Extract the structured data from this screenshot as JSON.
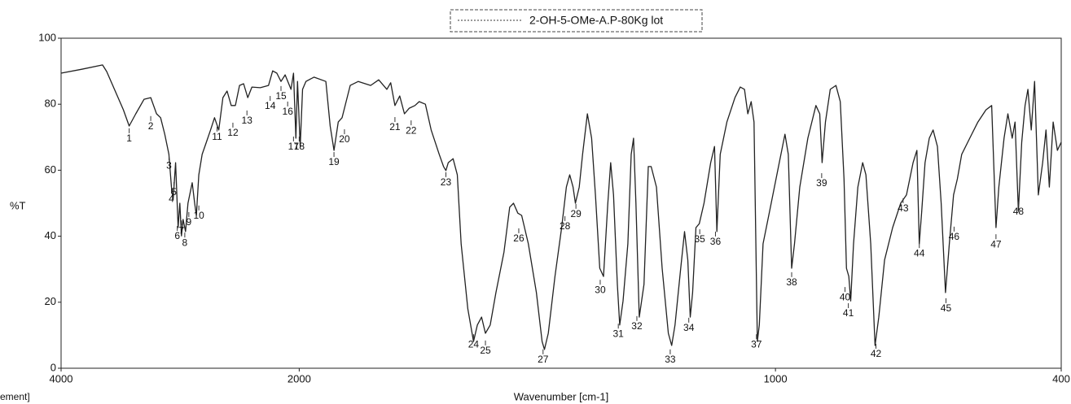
{
  "chart_data": {
    "type": "line",
    "x_label": "Wavenumber [cm-1]",
    "y_label": "%T",
    "corner_text": "ement]",
    "xlim": [
      4000,
      400
    ],
    "x_scale_break": 2000,
    "xticks": [
      4000,
      2000,
      1000,
      400
    ],
    "ylim": [
      0,
      100
    ],
    "yticks": [
      0,
      20,
      40,
      60,
      80,
      100
    ],
    "grid": false,
    "legend": "top",
    "series": [
      {
        "name": "2-OH-5-OMe-A.P-80Kg lot",
        "color": "#222222",
        "x": [
          4000,
          3826,
          3652,
          3617,
          3477,
          3428,
          3373,
          3303,
          3247,
          3198,
          3164,
          3129,
          3094,
          3073,
          3059,
          3038,
          3017,
          3003,
          2989,
          2975,
          2955,
          2934,
          2899,
          2878,
          2864,
          2843,
          2815,
          2780,
          2745,
          2711,
          2676,
          2641,
          2606,
          2571,
          2536,
          2501,
          2467,
          2432,
          2397,
          2327,
          2258,
          2223,
          2188,
          2153,
          2118,
          2069,
          2048,
          2028,
          2014,
          1998,
          1993,
          1986,
          1969,
          1944,
          1935,
          1927,
          1918,
          1910,
          1893,
          1876,
          1850,
          1833,
          1816,
          1808,
          1799,
          1789,
          1779,
          1769,
          1757,
          1748,
          1735,
          1723,
          1706,
          1697,
          1692,
          1687,
          1677,
          1668,
          1660,
          1646,
          1634,
          1626,
          1617,
          1609,
          1599,
          1587,
          1570,
          1558,
          1550,
          1541,
          1533,
          1519,
          1502,
          1490,
          1485,
          1477,
          1463,
          1449,
          1439,
          1432,
          1425,
          1420,
          1412,
          1405,
          1395,
          1386,
          1378,
          1369,
          1361,
          1352,
          1346,
          1340,
          1332,
          1327,
          1320,
          1310,
          1303,
          1298,
          1293,
          1286,
          1276,
          1267,
          1261,
          1250,
          1238,
          1225,
          1218,
          1211,
          1199,
          1191,
          1184,
          1179,
          1174,
          1167,
          1160,
          1150,
          1136,
          1128,
          1123,
          1116,
          1102,
          1085,
          1074,
          1065,
          1058,
          1051,
          1045,
          1038,
          1034,
          1026,
          1009,
          992,
          980,
          973,
          966,
          960,
          949,
          932,
          915,
          907,
          902,
          895,
          885,
          873,
          864,
          856,
          851,
          846,
          842,
          836,
          827,
          817,
          810,
          800,
          791,
          783,
          771,
          754,
          737,
          725,
          711,
          703,
          698,
          693,
          686,
          677,
          669,
          660,
          652,
          643,
          635,
          626,
          618,
          609,
          592,
          575,
          558,
          546,
          537,
          531,
          520,
          512,
          503,
          497,
          490,
          483,
          476,
          470,
          463,
          456,
          448,
          439,
          432,
          425,
          417,
          408,
          400
        ],
        "values": [
          89.4,
          90.6,
          91.9,
          89.9,
          78.3,
          73.4,
          77.1,
          81.5,
          82.0,
          77.1,
          75.9,
          70.9,
          64.8,
          54.9,
          51.2,
          62.3,
          42.6,
          50.0,
          40.1,
          45.1,
          41.4,
          50.0,
          56.2,
          50.0,
          46.3,
          58.6,
          64.8,
          68.5,
          72.2,
          75.9,
          72.2,
          82.0,
          84.0,
          79.6,
          79.6,
          85.7,
          86.2,
          82.0,
          85.2,
          85.0,
          85.7,
          90.1,
          89.4,
          86.9,
          88.9,
          84.5,
          89.4,
          69.7,
          86.9,
          67.2,
          84.5,
          86.9,
          88.2,
          86.9,
          73.4,
          66.0,
          74.6,
          75.9,
          85.7,
          86.9,
          85.7,
          87.4,
          84.5,
          86.5,
          79.6,
          82.5,
          77.1,
          78.8,
          79.6,
          80.8,
          80.0,
          72.2,
          64.8,
          61.1,
          59.9,
          62.3,
          63.5,
          58.6,
          37.7,
          18.0,
          8.1,
          13.1,
          15.5,
          10.6,
          13.1,
          22.9,
          35.2,
          48.8,
          50.0,
          47.0,
          46.3,
          37.7,
          22.9,
          8.1,
          5.7,
          10.6,
          27.8,
          42.6,
          54.9,
          58.6,
          54.9,
          50.0,
          54.9,
          64.8,
          77.1,
          69.7,
          52.5,
          30.3,
          27.8,
          50.0,
          62.3,
          52.5,
          25.4,
          13.1,
          20.4,
          37.7,
          64.8,
          69.7,
          50.0,
          15.5,
          25.4,
          61.1,
          61.1,
          54.9,
          30.3,
          10.6,
          6.9,
          13.1,
          30.3,
          41.4,
          32.8,
          15.5,
          22.9,
          42.6,
          43.8,
          50.0,
          62.3,
          67.2,
          41.4,
          64.8,
          74.6,
          82.0,
          85.2,
          84.5,
          77.1,
          80.8,
          74.6,
          8.1,
          13.1,
          37.7,
          50.0,
          62.3,
          70.9,
          64.8,
          30.3,
          37.7,
          54.9,
          69.7,
          79.6,
          77.1,
          62.3,
          74.6,
          84.5,
          85.7,
          80.8,
          57.4,
          30.3,
          27.8,
          20.4,
          37.7,
          54.9,
          62.3,
          58.6,
          37.7,
          6.9,
          15.5,
          32.8,
          42.6,
          50.0,
          52.5,
          62.3,
          66.0,
          37.7,
          47.5,
          62.3,
          69.7,
          72.2,
          67.2,
          50.0,
          22.9,
          37.7,
          52.5,
          57.4,
          64.8,
          69.7,
          74.6,
          78.3,
          79.6,
          42.6,
          54.9,
          69.7,
          77.1,
          69.7,
          74.6,
          47.5,
          68.5,
          79.6,
          84.5,
          72.2,
          86.9,
          52.5,
          62.3,
          72.2,
          54.9,
          74.6,
          66.0,
          68.5
        ]
      }
    ],
    "peak_labels": [
      {
        "text": "1",
        "x": 3428,
        "y": 72.7
      },
      {
        "text": "2",
        "x": 3247,
        "y": 76.4
      },
      {
        "text": "3",
        "x": 3094,
        "y": 64.5
      },
      {
        "text": "4",
        "x": 3073,
        "y": 54.4
      },
      {
        "text": "5",
        "x": 3052,
        "y": 56.4
      },
      {
        "text": "6",
        "x": 3024,
        "y": 43.1
      },
      {
        "text": "7",
        "x": 2989,
        "y": 44.8
      },
      {
        "text": "8",
        "x": 2961,
        "y": 41.1
      },
      {
        "text": "9",
        "x": 2927,
        "y": 47.3
      },
      {
        "text": "10",
        "x": 2843,
        "y": 49.3
      },
      {
        "text": "11",
        "x": 2690,
        "y": 73.2
      },
      {
        "text": "12",
        "x": 2557,
        "y": 74.4
      },
      {
        "text": "13",
        "x": 2439,
        "y": 78.1
      },
      {
        "text": "14",
        "x": 2244,
        "y": 82.5
      },
      {
        "text": "15",
        "x": 2153,
        "y": 85.5
      },
      {
        "text": "16",
        "x": 2097,
        "y": 80.8
      },
      {
        "text": "17",
        "x": 2048,
        "y": 70.2
      },
      {
        "text": "18",
        "x": 2000,
        "y": 70.2
      },
      {
        "text": "19",
        "x": 1927,
        "y": 65.5
      },
      {
        "text": "20",
        "x": 1905,
        "y": 72.4
      },
      {
        "text": "21",
        "x": 1799,
        "y": 76.1
      },
      {
        "text": "22",
        "x": 1765,
        "y": 75.1
      },
      {
        "text": "23",
        "x": 1692,
        "y": 59.4
      },
      {
        "text": "24",
        "x": 1634,
        "y": 10.3
      },
      {
        "text": "25",
        "x": 1609,
        "y": 8.4
      },
      {
        "text": "26",
        "x": 1539,
        "y": 42.4
      },
      {
        "text": "27",
        "x": 1488,
        "y": 5.7
      },
      {
        "text": "28",
        "x": 1442,
        "y": 46.1
      },
      {
        "text": "29",
        "x": 1419,
        "y": 49.8
      },
      {
        "text": "30",
        "x": 1368,
        "y": 26.8
      },
      {
        "text": "31",
        "x": 1330,
        "y": 13.5
      },
      {
        "text": "32",
        "x": 1291,
        "y": 15.8
      },
      {
        "text": "33",
        "x": 1221,
        "y": 5.7
      },
      {
        "text": "34",
        "x": 1182,
        "y": 15.3
      },
      {
        "text": "35",
        "x": 1159,
        "y": 42.1
      },
      {
        "text": "36",
        "x": 1126,
        "y": 41.4
      },
      {
        "text": "37",
        "x": 1040,
        "y": 10.3
      },
      {
        "text": "38",
        "x": 966,
        "y": 29.1
      },
      {
        "text": "39",
        "x": 903,
        "y": 59.1
      },
      {
        "text": "40",
        "x": 854,
        "y": 24.6
      },
      {
        "text": "41",
        "x": 847,
        "y": 19.7
      },
      {
        "text": "42",
        "x": 789,
        "y": 7.4
      },
      {
        "text": "43",
        "x": 732,
        "y": 51.5
      },
      {
        "text": "44",
        "x": 698,
        "y": 37.9
      },
      {
        "text": "45",
        "x": 642,
        "y": 21.2
      },
      {
        "text": "46",
        "x": 625,
        "y": 42.9
      },
      {
        "text": "47",
        "x": 537,
        "y": 40.6
      },
      {
        "text": "48",
        "x": 490,
        "y": 50.5
      }
    ]
  }
}
